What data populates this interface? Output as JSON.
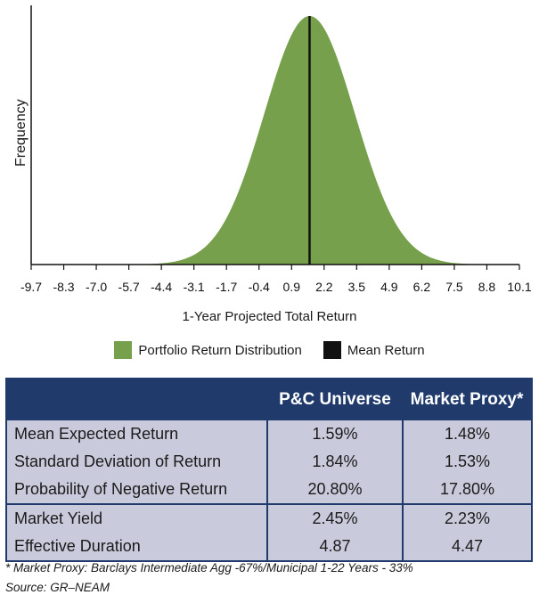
{
  "chart_data": {
    "type": "area",
    "title": "",
    "xlabel": "1-Year Projected Total Return",
    "ylabel": "Frequency",
    "x_ticks": [
      "-9.7",
      "-8.3",
      "-7.0",
      "-5.7",
      "-4.4",
      "-3.1",
      "-1.7",
      "-0.4",
      "0.9",
      "2.2",
      "3.5",
      "4.9",
      "6.2",
      "7.5",
      "8.8",
      "10.1"
    ],
    "xlim": [
      -9.7,
      10.1
    ],
    "series": [
      {
        "name": "Portfolio Return Distribution",
        "kind": "normal-curve",
        "mean": 1.59,
        "std_dev": 1.84,
        "color": "#76a04b"
      },
      {
        "name": "Mean Return",
        "kind": "vertical-line",
        "x": 1.59,
        "color": "#111111"
      }
    ],
    "legend_position": "bottom-center"
  },
  "legend": {
    "items": [
      {
        "label": "Portfolio Return Distribution",
        "color": "#76a04b"
      },
      {
        "label": "Mean Return",
        "color": "#111111"
      }
    ]
  },
  "table": {
    "headers": [
      "",
      "P&C Universe",
      "Market Proxy*"
    ],
    "rows": [
      {
        "label": "Mean Expected Return",
        "v1": "1.59%",
        "v2": "1.48%"
      },
      {
        "label": "Standard Deviation of Return",
        "v1": "1.84%",
        "v2": "1.53%"
      },
      {
        "label": "Probability of Negative Return",
        "v1": "20.80%",
        "v2": "17.80%"
      },
      {
        "label": "Market Yield",
        "v1": "2.45%",
        "v2": "2.23%"
      },
      {
        "label": "Effective Duration",
        "v1": "4.87",
        "v2": "4.47"
      }
    ],
    "header_color": "#1f3a6b",
    "row_color": "#c9cbdc"
  },
  "footnote": "* Market Proxy: Barclays Intermediate Agg -67%/Municipal 1-22 Years - 33%",
  "source": "Source: GR–NEAM"
}
